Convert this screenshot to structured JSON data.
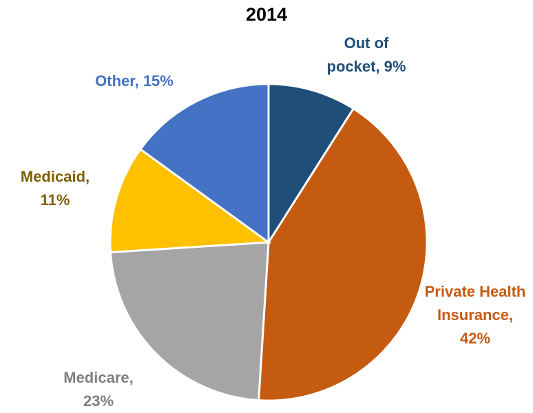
{
  "chart_data": {
    "type": "pie",
    "title": "2014",
    "categories": [
      "Out of pocket",
      "Private Health Insurance",
      "Medicare",
      "Medicaid",
      "Other"
    ],
    "values": [
      9,
      42,
      23,
      11,
      15
    ],
    "value_labels": [
      "Out of pocket, 9%",
      "Private Health Insurance, 42%",
      "Medicare, 23%",
      "Medicaid, 11%",
      "Other, 15%"
    ],
    "colors": [
      "#1f4e79",
      "#c55a11",
      "#a5a5a5",
      "#ffc000",
      "#4472c4"
    ],
    "label_colors": [
      "#1f4e79",
      "#c55a11",
      "#7f7f7f",
      "#7f6000",
      "#4472c4"
    ]
  }
}
